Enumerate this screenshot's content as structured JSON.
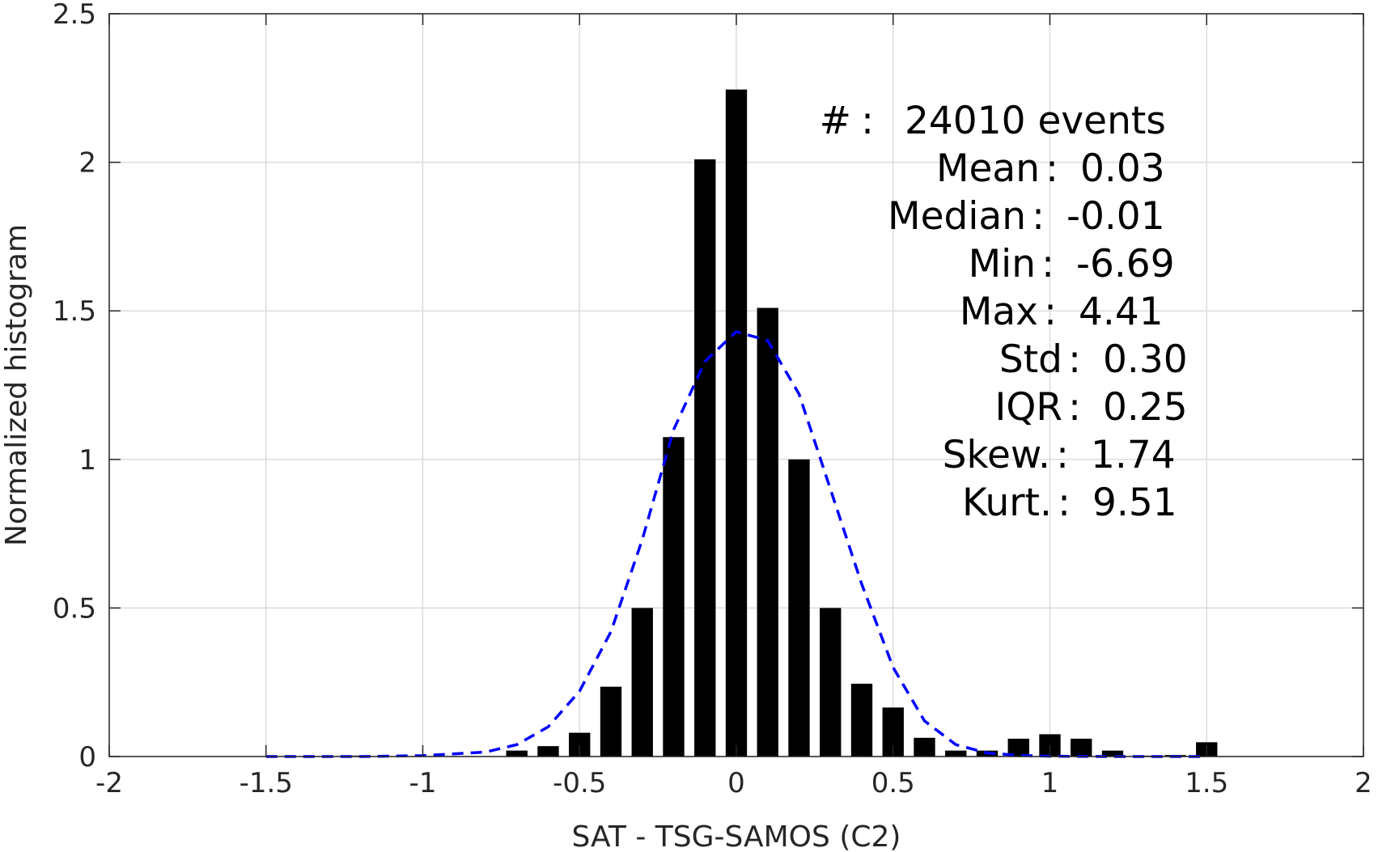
{
  "chart_data": {
    "type": "bar",
    "xlabel": "SAT - TSG-SAMOS (C2)",
    "ylabel": "Normalized histogram",
    "xlim": [
      -2,
      2
    ],
    "ylim": [
      0,
      2.5
    ],
    "grid": true,
    "x_ticks": [
      -2,
      -1.5,
      -1,
      -0.5,
      0,
      0.5,
      1,
      1.5,
      2
    ],
    "x_tick_labels": [
      "-2",
      "-1.5",
      "-1",
      "-0.5",
      "0",
      "0.5",
      "1",
      "1.5",
      "2"
    ],
    "y_ticks": [
      0,
      0.5,
      1,
      1.5,
      2,
      2.5
    ],
    "y_tick_labels": [
      "0",
      "0.5",
      "1",
      "1.5",
      "2",
      "2.5"
    ],
    "bar_color": "#000000",
    "bars": {
      "x": [
        -1.2,
        -0.7,
        -0.6,
        -0.5,
        -0.4,
        -0.3,
        -0.2,
        -0.1,
        0.0,
        0.1,
        0.2,
        0.3,
        0.4,
        0.5,
        0.6,
        0.7,
        0.8,
        0.9,
        1.0,
        1.1,
        1.2,
        1.3,
        1.4,
        1.5
      ],
      "values": [
        0.003,
        0.02,
        0.035,
        0.08,
        0.235,
        0.5,
        1.075,
        2.01,
        2.245,
        1.51,
        1.0,
        0.5,
        0.245,
        0.165,
        0.063,
        0.02,
        0.02,
        0.06,
        0.075,
        0.06,
        0.02,
        0.003,
        0.005,
        0.048
      ]
    },
    "fit_curve": {
      "color": "#0000ff",
      "style": "dashed",
      "x": [
        -1.5,
        -1.2,
        -1.0,
        -0.8,
        -0.7,
        -0.6,
        -0.5,
        -0.4,
        -0.3,
        -0.2,
        -0.1,
        0.0,
        0.1,
        0.2,
        0.3,
        0.4,
        0.5,
        0.6,
        0.7,
        0.8,
        0.9,
        1.0,
        1.2,
        1.5
      ],
      "y": [
        0.0,
        0.0,
        0.003,
        0.015,
        0.04,
        0.1,
        0.22,
        0.42,
        0.73,
        1.1,
        1.33,
        1.43,
        1.4,
        1.22,
        0.9,
        0.58,
        0.3,
        0.12,
        0.04,
        0.012,
        0.004,
        0.001,
        0.0,
        0.0
      ]
    },
    "annotations": [
      {
        "label": "#  ",
        "sep": " : ",
        "value": "24010 events"
      },
      {
        "label": "Mean",
        "sep": " : ",
        "value": "0.03"
      },
      {
        "label": "Median",
        "sep": " : ",
        "value": "-0.01"
      },
      {
        "label": "Min",
        "sep": " : ",
        "value": "-6.69"
      },
      {
        "label": "Max",
        "sep": " : ",
        "value": "4.41"
      },
      {
        "label": "Std",
        "sep": " : ",
        "value": "0.30"
      },
      {
        "label": "IQR",
        "sep": " : ",
        "value": "0.25"
      },
      {
        "label": "Skew.",
        "sep": " : ",
        "value": "1.74"
      },
      {
        "label": "Kurt.",
        "sep": " : ",
        "value": "9.51"
      }
    ]
  }
}
